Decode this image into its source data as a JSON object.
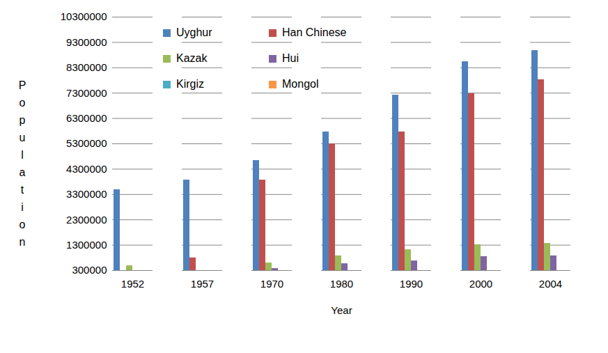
{
  "chart_data": {
    "type": "bar",
    "x_label": "Year",
    "y_label": "Population",
    "categories": [
      "1952",
      "1957",
      "1970",
      "1980",
      "1990",
      "2000",
      "2004"
    ],
    "series": [
      {
        "name": "Uyghur",
        "color": "#4F81BD",
        "values": [
          3490000,
          3870000,
          4640000,
          5770000,
          7220000,
          8540000,
          8980000
        ]
      },
      {
        "name": "Han Chinese",
        "color": "#C0504D",
        "values": [
          null,
          800000,
          3870000,
          5300000,
          5770000,
          7280000,
          7830000
        ]
      },
      {
        "name": "Kazak",
        "color": "#9BBB59",
        "values": [
          490000,
          null,
          600000,
          880000,
          1120000,
          1320000,
          1370000
        ]
      },
      {
        "name": "Hui",
        "color": "#8064A2",
        "values": [
          null,
          null,
          380000,
          570000,
          680000,
          850000,
          880000
        ]
      },
      {
        "name": "Kirgiz",
        "color": "#4BACC6",
        "values": [
          null,
          null,
          null,
          null,
          null,
          null,
          null
        ]
      },
      {
        "name": "Mongol",
        "color": "#F79646",
        "values": [
          null,
          null,
          null,
          null,
          null,
          null,
          null
        ]
      }
    ],
    "ylim": [
      300000,
      10300000
    ],
    "yticks": [
      300000,
      1300000,
      2300000,
      3300000,
      4300000,
      5300000,
      6300000,
      7300000,
      8300000,
      9300000,
      10300000
    ],
    "grid": true,
    "legend": "top-left"
  }
}
